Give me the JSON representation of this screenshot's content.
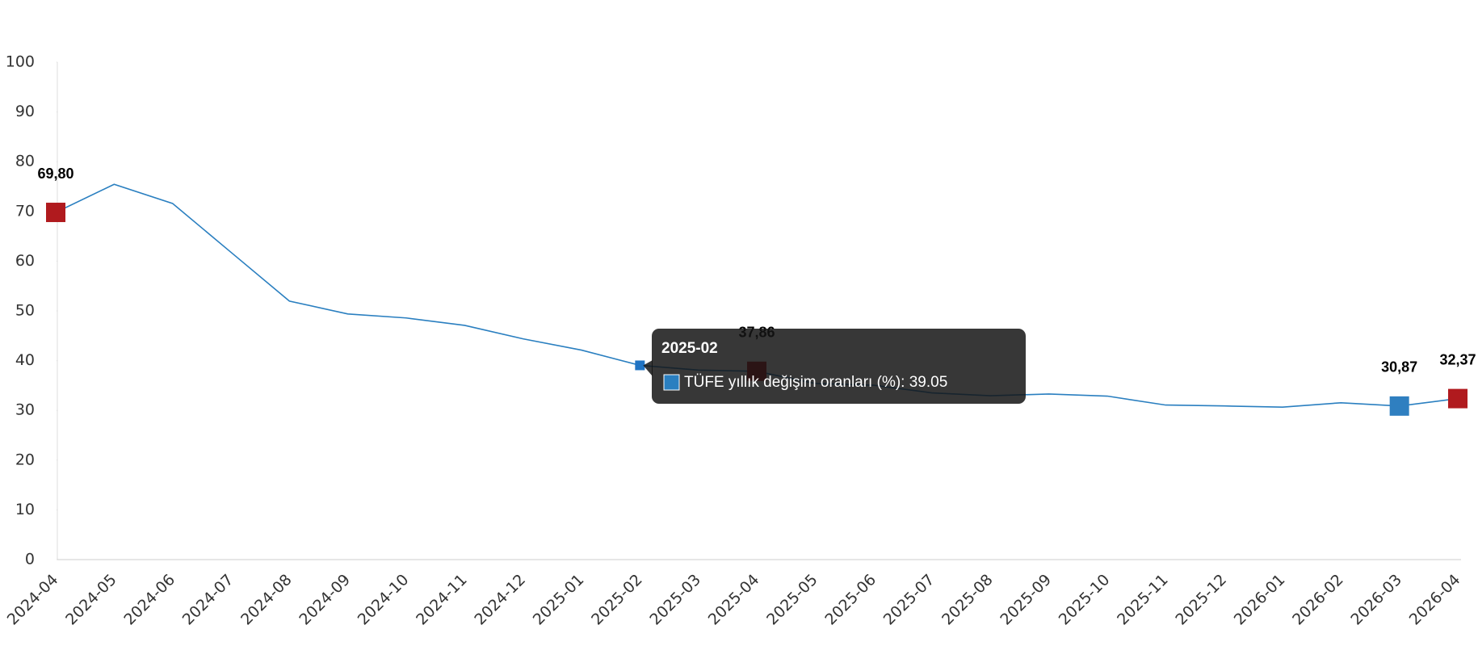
{
  "chart_data": {
    "type": "line",
    "categories": [
      "2024-04",
      "2024-05",
      "2024-06",
      "2024-07",
      "2024-08",
      "2024-09",
      "2024-10",
      "2024-11",
      "2024-12",
      "2025-01",
      "2025-02",
      "2025-03",
      "2025-04",
      "2025-05",
      "2025-06",
      "2025-07",
      "2025-08",
      "2025-09",
      "2025-10",
      "2025-11",
      "2025-12",
      "2026-01",
      "2026-02",
      "2026-03",
      "2026-04"
    ],
    "values": [
      69.8,
      75.45,
      71.6,
      61.78,
      51.97,
      49.38,
      48.58,
      47.09,
      44.38,
      42.12,
      39.05,
      38.1,
      37.86,
      35.41,
      35.05,
      33.52,
      32.95,
      33.29,
      32.87,
      31.07,
      30.89,
      30.65,
      31.53,
      30.87,
      32.37
    ],
    "value_labels": [
      "69,80",
      null,
      null,
      null,
      null,
      null,
      null,
      null,
      null,
      null,
      null,
      null,
      "37,86",
      null,
      null,
      null,
      null,
      null,
      null,
      null,
      null,
      null,
      null,
      "30,87",
      "32,37"
    ],
    "marker_colors": [
      "#b01a1e",
      null,
      null,
      null,
      null,
      null,
      null,
      null,
      null,
      null,
      null,
      null,
      "#b01a1e",
      null,
      null,
      null,
      null,
      null,
      null,
      null,
      null,
      null,
      null,
      "#2f7fc0",
      "#b01a1e"
    ],
    "color": "#2a7fc0",
    "ylim": [
      0,
      100
    ],
    "yticks": [
      0,
      10,
      20,
      30,
      40,
      50,
      60,
      70,
      80,
      90,
      100
    ],
    "grid": false,
    "tooltip": {
      "title": "2025-02",
      "text": "TÜFE yıllık değişim oranları (%): 39.05"
    }
  }
}
